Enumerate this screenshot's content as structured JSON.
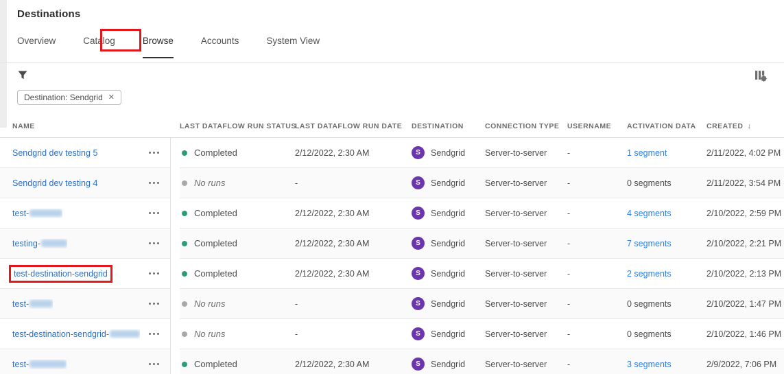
{
  "page": {
    "title": "Destinations"
  },
  "tabs": [
    {
      "label": "Overview",
      "selected": false
    },
    {
      "label": "Catalog",
      "selected": false
    },
    {
      "label": "Browse",
      "selected": true,
      "annotated": true
    },
    {
      "label": "Accounts",
      "selected": false
    },
    {
      "label": "System View",
      "selected": false
    }
  ],
  "toolbar": {
    "filter_icon": "funnel-icon",
    "view_settings_icon": "column-settings-icon",
    "filter_chip": {
      "label": "Destination: Sendgrid",
      "close_icon": "x-icon"
    }
  },
  "colors": {
    "annotation_red": "#e0181c",
    "badge_purple": "#6a35ad",
    "status_green": "#2d9d78",
    "status_gray": "#a8a8a8",
    "link_blue": "#2680eb",
    "name_blue": "#2e6fc4"
  },
  "destination_badge": {
    "initial": "S"
  },
  "table": {
    "columns": [
      {
        "label": "Name"
      },
      {
        "label": "Last dataflow run status"
      },
      {
        "label": "Last dataflow run date"
      },
      {
        "label": "Destination"
      },
      {
        "label": "Connection type"
      },
      {
        "label": "Username"
      },
      {
        "label": "Activation data"
      },
      {
        "label": "Created",
        "sorted": "desc",
        "sort_arrow": "↓"
      }
    ],
    "rows": [
      {
        "name": "Sendgrid dev testing 5",
        "redacted_suffix": false,
        "redaction_width": 0,
        "status": "Completed",
        "last_run_date": "2/12/2022, 2:30 AM",
        "destination": "Sendgrid",
        "connection_type": "Server-to-server",
        "username": "-",
        "activation_data": "1 segment",
        "activation_is_link": true,
        "created": "2/11/2022, 4:02 PM",
        "highlighted": false
      },
      {
        "name": "Sendgrid dev testing 4",
        "redacted_suffix": false,
        "redaction_width": 0,
        "status": "No runs",
        "last_run_date": "-",
        "destination": "Sendgrid",
        "connection_type": "Server-to-server",
        "username": "-",
        "activation_data": "0 segments",
        "activation_is_link": false,
        "created": "2/11/2022, 3:54 PM",
        "highlighted": false
      },
      {
        "name": "test-",
        "redacted_suffix": true,
        "redaction_width": 48,
        "status": "Completed",
        "last_run_date": "2/12/2022, 2:30 AM",
        "destination": "Sendgrid",
        "connection_type": "Server-to-server",
        "username": "-",
        "activation_data": "4 segments",
        "activation_is_link": true,
        "created": "2/10/2022, 2:59 PM",
        "highlighted": false
      },
      {
        "name": "testing-",
        "redacted_suffix": true,
        "redaction_width": 38,
        "status": "Completed",
        "last_run_date": "2/12/2022, 2:30 AM",
        "destination": "Sendgrid",
        "connection_type": "Server-to-server",
        "username": "-",
        "activation_data": "7 segments",
        "activation_is_link": true,
        "created": "2/10/2022, 2:21 PM",
        "highlighted": false
      },
      {
        "name": "test-destination-sendgrid",
        "redacted_suffix": false,
        "redaction_width": 0,
        "status": "Completed",
        "last_run_date": "2/12/2022, 2:30 AM",
        "destination": "Sendgrid",
        "connection_type": "Server-to-server",
        "username": "-",
        "activation_data": "2 segments",
        "activation_is_link": true,
        "created": "2/10/2022, 2:13 PM",
        "highlighted": true
      },
      {
        "name": "test-",
        "redacted_suffix": true,
        "redaction_width": 34,
        "status": "No runs",
        "last_run_date": "-",
        "destination": "Sendgrid",
        "connection_type": "Server-to-server",
        "username": "-",
        "activation_data": "0 segments",
        "activation_is_link": false,
        "created": "2/10/2022, 1:47 PM",
        "highlighted": false
      },
      {
        "name": "test-destination-sendgrid-",
        "redacted_suffix": true,
        "redaction_width": 44,
        "status": "No runs",
        "last_run_date": "-",
        "destination": "Sendgrid",
        "connection_type": "Server-to-server",
        "username": "-",
        "activation_data": "0 segments",
        "activation_is_link": false,
        "created": "2/10/2022, 1:46 PM",
        "highlighted": false
      },
      {
        "name": "test-",
        "redacted_suffix": true,
        "redaction_width": 54,
        "status": "Completed",
        "last_run_date": "2/12/2022, 2:30 AM",
        "destination": "Sendgrid",
        "connection_type": "Server-to-server",
        "username": "-",
        "activation_data": "3 segments",
        "activation_is_link": true,
        "created": "2/9/2022, 7:06 PM",
        "highlighted": false
      }
    ]
  }
}
